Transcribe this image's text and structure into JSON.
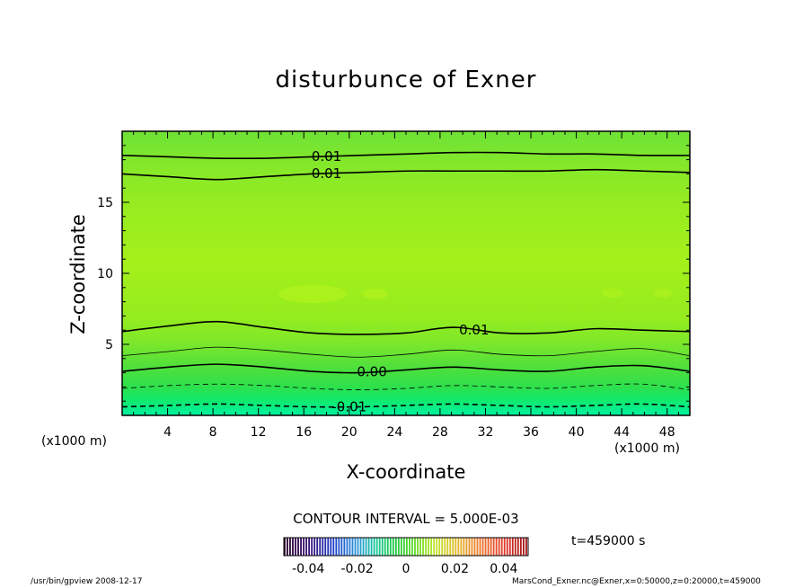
{
  "title": "disturbunce of Exner",
  "contour_interval_text": "CONTOUR INTERVAL = 5.000E-03",
  "time_text": "t=459000 s",
  "footer": {
    "left": "/usr/bin/gpview   2008-12-17",
    "right": "MarsCond_Exner.nc@Exner,x=0:50000,z=0:20000,t=459000"
  },
  "chart_data": {
    "type": "heatmap",
    "title": "disturbunce of Exner",
    "xlabel": "X-coordinate",
    "ylabel": "Z-coordinate",
    "x_unit": "(x1000 m)",
    "xlim": [
      0,
      50
    ],
    "ylim": [
      0,
      20
    ],
    "x_ticks": [
      4,
      8,
      12,
      16,
      20,
      24,
      28,
      32,
      36,
      40,
      44,
      48
    ],
    "y_ticks": [
      5,
      10,
      15
    ],
    "contour_interval": 0.005,
    "contours": [
      {
        "level": -0.01,
        "style": "dashed",
        "label": "-0.01",
        "z": [
          0.6,
          0.7,
          0.8,
          0.7,
          0.6,
          0.6,
          0.7,
          0.8,
          0.7,
          0.6,
          0.7,
          0.8,
          0.6
        ]
      },
      {
        "level": -0.005,
        "style": "dashed",
        "label": "",
        "z": [
          1.9,
          2.1,
          2.2,
          2.1,
          1.9,
          1.8,
          1.9,
          2.1,
          2.0,
          1.9,
          2.1,
          2.2,
          1.8
        ]
      },
      {
        "level": 0.0,
        "style": "solid",
        "label": "0.00",
        "z": [
          3.1,
          3.4,
          3.6,
          3.4,
          3.1,
          3.0,
          3.2,
          3.4,
          3.2,
          3.1,
          3.4,
          3.5,
          3.1
        ]
      },
      {
        "level": 0.005,
        "style": "solid",
        "label": "",
        "z": [
          4.2,
          4.5,
          4.8,
          4.6,
          4.3,
          4.1,
          4.3,
          4.6,
          4.3,
          4.2,
          4.5,
          4.7,
          4.2
        ]
      },
      {
        "level": 0.01,
        "style": "solid",
        "label": "0.01",
        "z": [
          5.9,
          6.3,
          6.6,
          6.2,
          5.8,
          5.7,
          5.8,
          6.2,
          5.8,
          5.8,
          6.1,
          6.0,
          5.9
        ]
      },
      {
        "level": 0.01,
        "style": "solid",
        "label": "0.01",
        "z": [
          17.0,
          16.8,
          16.6,
          16.8,
          17.0,
          17.1,
          17.2,
          17.2,
          17.2,
          17.2,
          17.3,
          17.2,
          17.1
        ]
      },
      {
        "level": 0.01,
        "style": "solid",
        "label": "0.01",
        "z": [
          18.3,
          18.2,
          18.1,
          18.1,
          18.2,
          18.3,
          18.4,
          18.5,
          18.5,
          18.4,
          18.4,
          18.3,
          18.3
        ]
      }
    ],
    "colorbar": {
      "ticks": [
        "-0.04",
        "-0.02",
        "0",
        "0.02",
        "0.04"
      ],
      "range": [
        -0.05,
        0.05
      ]
    }
  }
}
